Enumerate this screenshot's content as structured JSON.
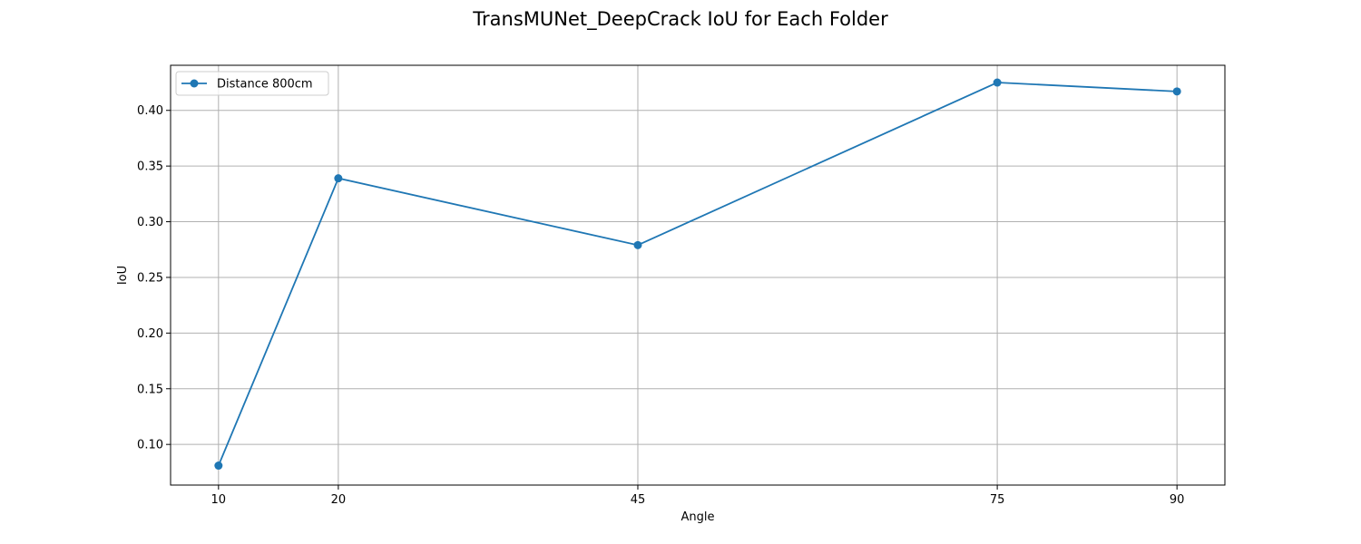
{
  "chart_data": {
    "type": "line",
    "title": "TransMUNet_DeepCrack IoU for Each Folder",
    "xlabel": "Angle",
    "ylabel": "IoU",
    "x": [
      10,
      20,
      45,
      75,
      90
    ],
    "x_tick_labels": [
      "10",
      "20",
      "45",
      "75",
      "90"
    ],
    "y_ticks": [
      0.1,
      0.15,
      0.2,
      0.25,
      0.3,
      0.35,
      0.4
    ],
    "y_tick_labels": [
      "0.10",
      "0.15",
      "0.20",
      "0.25",
      "0.30",
      "0.35",
      "0.40"
    ],
    "xlim": [
      6,
      94
    ],
    "ylim": [
      0.0635,
      0.4405
    ],
    "grid": true,
    "legend_position": "top-left",
    "series": [
      {
        "name": "Distance 800cm",
        "color": "#1f77b4",
        "marker": "circle",
        "values": [
          0.081,
          0.339,
          0.279,
          0.425,
          0.417
        ]
      }
    ]
  }
}
